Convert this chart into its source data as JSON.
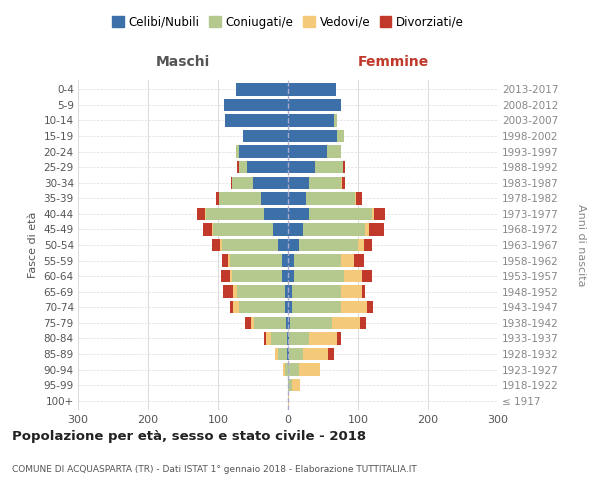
{
  "age_groups": [
    "100+",
    "95-99",
    "90-94",
    "85-89",
    "80-84",
    "75-79",
    "70-74",
    "65-69",
    "60-64",
    "55-59",
    "50-54",
    "45-49",
    "40-44",
    "35-39",
    "30-34",
    "25-29",
    "20-24",
    "15-19",
    "10-14",
    "5-9",
    "0-4"
  ],
  "birth_years": [
    "≤ 1917",
    "1918-1922",
    "1923-1927",
    "1928-1932",
    "1933-1937",
    "1938-1942",
    "1943-1947",
    "1948-1952",
    "1953-1957",
    "1958-1962",
    "1963-1967",
    "1968-1972",
    "1973-1977",
    "1978-1982",
    "1983-1987",
    "1988-1992",
    "1993-1997",
    "1998-2002",
    "2003-2007",
    "2008-2012",
    "2013-2017"
  ],
  "males": {
    "celibe": [
      0,
      0,
      0,
      2,
      2,
      3,
      5,
      5,
      8,
      8,
      15,
      22,
      35,
      38,
      50,
      58,
      70,
      65,
      90,
      92,
      75
    ],
    "coniugato": [
      0,
      0,
      5,
      12,
      22,
      45,
      65,
      68,
      72,
      75,
      80,
      85,
      82,
      60,
      30,
      12,
      5,
      0,
      0,
      0,
      0
    ],
    "vedovo": [
      0,
      0,
      2,
      5,
      8,
      5,
      8,
      5,
      3,
      3,
      2,
      2,
      1,
      0,
      0,
      0,
      0,
      0,
      0,
      0,
      0
    ],
    "divorziato": [
      0,
      0,
      0,
      0,
      2,
      8,
      5,
      15,
      12,
      8,
      12,
      12,
      12,
      5,
      2,
      3,
      0,
      0,
      0,
      0,
      0
    ]
  },
  "females": {
    "nubile": [
      0,
      0,
      0,
      2,
      2,
      3,
      5,
      5,
      8,
      8,
      15,
      22,
      30,
      25,
      30,
      38,
      55,
      70,
      65,
      75,
      68
    ],
    "coniugata": [
      0,
      5,
      15,
      20,
      28,
      60,
      70,
      70,
      72,
      68,
      85,
      88,
      90,
      70,
      45,
      40,
      20,
      10,
      5,
      0,
      0
    ],
    "vedova": [
      2,
      12,
      30,
      35,
      40,
      40,
      38,
      30,
      25,
      18,
      8,
      5,
      3,
      2,
      2,
      0,
      0,
      0,
      0,
      0,
      0
    ],
    "divorziata": [
      0,
      0,
      0,
      8,
      5,
      8,
      8,
      5,
      15,
      15,
      12,
      22,
      15,
      8,
      5,
      3,
      0,
      0,
      0,
      0,
      0
    ]
  },
  "colors": {
    "celibe": "#3d6fa8",
    "coniugato": "#b5c98e",
    "vedovo": "#f5c97a",
    "divorziato": "#c0392b"
  },
  "xlim": 300,
  "title": "Popolazione per età, sesso e stato civile - 2018",
  "subtitle": "COMUNE DI ACQUASPARTA (TR) - Dati ISTAT 1° gennaio 2018 - Elaborazione TUTTITALIA.IT",
  "xlabel_left": "Maschi",
  "xlabel_right": "Femmine",
  "ylabel_left": "Fasce di età",
  "ylabel_right": "Anni di nascita",
  "legend_labels": [
    "Celibi/Nubili",
    "Coniugati/e",
    "Vedovi/e",
    "Divorziati/e"
  ],
  "maschi_color": "#555555",
  "femmine_color": "#c0392b",
  "xticks": [
    -300,
    -200,
    -100,
    0,
    100,
    200,
    300
  ],
  "xtick_labels": [
    "300",
    "200",
    "100",
    "0",
    "100",
    "200",
    "300"
  ]
}
